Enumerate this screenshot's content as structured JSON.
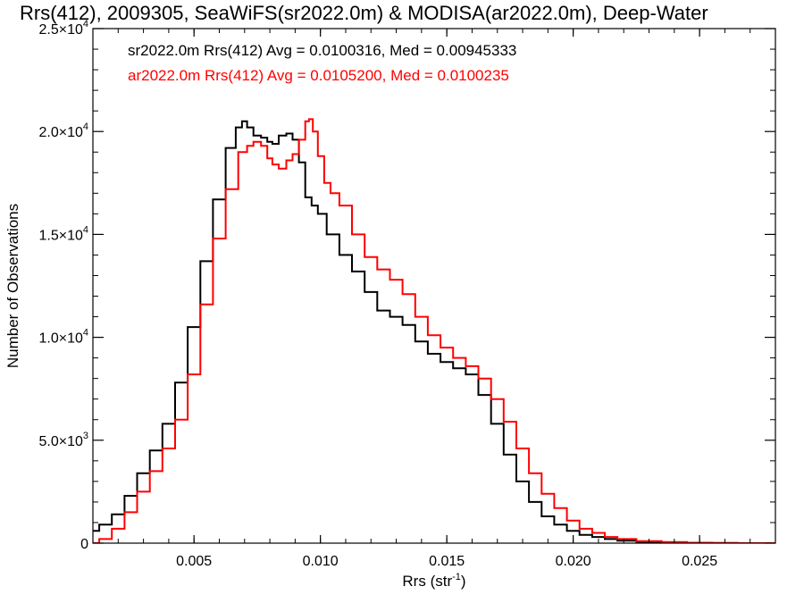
{
  "chart_data": {
    "type": "line",
    "title": "Rrs(412), 2009305, SeaWiFS(sr2022.0m) & MODISA(ar2022.0m), Deep-Water",
    "xlabel": "Rrs (str",
    "xlabel_sup": "-1",
    "xlabel_end": ")",
    "ylabel": "Number of Observations",
    "xlim": [
      0.001,
      0.028
    ],
    "ylim": [
      0,
      25000
    ],
    "grid": false,
    "x_ticks": [
      {
        "value": 0.005,
        "label": "0.005"
      },
      {
        "value": 0.01,
        "label": "0.010"
      },
      {
        "value": 0.015,
        "label": "0.015"
      },
      {
        "value": 0.02,
        "label": "0.020"
      },
      {
        "value": 0.025,
        "label": "0.025"
      }
    ],
    "y_ticks": [
      {
        "value": 0,
        "mant": "0",
        "exp": ""
      },
      {
        "value": 5000,
        "mant": "5.0×10",
        "exp": "3"
      },
      {
        "value": 10000,
        "mant": "1.0×10",
        "exp": "4"
      },
      {
        "value": 15000,
        "mant": "1.5×10",
        "exp": "4"
      },
      {
        "value": 20000,
        "mant": "2.0×10",
        "exp": "4"
      },
      {
        "value": 25000,
        "mant": "2.5×10",
        "exp": "4"
      }
    ],
    "series": [
      {
        "name": "sr2022.0m Rrs(412) Avg = 0.0100316, Med = 0.00945333",
        "color": "#000000",
        "x": [
          0.001,
          0.0015,
          0.002,
          0.0025,
          0.003,
          0.0035,
          0.004,
          0.0045,
          0.005,
          0.0055,
          0.006,
          0.0065,
          0.0068,
          0.007,
          0.0072,
          0.0075,
          0.0078,
          0.008,
          0.0082,
          0.0085,
          0.0088,
          0.009,
          0.0093,
          0.0095,
          0.0098,
          0.01,
          0.0105,
          0.011,
          0.0115,
          0.012,
          0.0125,
          0.013,
          0.0135,
          0.014,
          0.0145,
          0.015,
          0.0155,
          0.016,
          0.0165,
          0.017,
          0.0175,
          0.018,
          0.0185,
          0.019,
          0.0195,
          0.02,
          0.0205,
          0.021,
          0.0215,
          0.022,
          0.023,
          0.024,
          0.025,
          0.026,
          0.027,
          0.028
        ],
        "y": [
          600,
          900,
          1400,
          2300,
          3400,
          4500,
          5800,
          7800,
          10500,
          13700,
          16700,
          19200,
          20200,
          20500,
          20200,
          19800,
          19700,
          19500,
          19400,
          19800,
          19900,
          19600,
          18500,
          16800,
          16400,
          16000,
          15000,
          14000,
          13200,
          12200,
          11300,
          11000,
          10600,
          9800,
          9200,
          8800,
          8500,
          8200,
          7200,
          5800,
          4300,
          3000,
          2000,
          1300,
          900,
          600,
          400,
          300,
          200,
          120,
          50,
          20,
          10,
          5,
          0,
          0
        ]
      },
      {
        "name": "ar2022.0m Rrs(412) Avg = 0.0105200, Med = 0.0100235",
        "color": "#ff0000",
        "x": [
          0.001,
          0.0015,
          0.002,
          0.0025,
          0.003,
          0.0035,
          0.004,
          0.0045,
          0.005,
          0.0055,
          0.006,
          0.0065,
          0.007,
          0.0072,
          0.0075,
          0.0078,
          0.008,
          0.0082,
          0.0085,
          0.0088,
          0.009,
          0.0093,
          0.0095,
          0.0096,
          0.0098,
          0.01,
          0.0103,
          0.0105,
          0.011,
          0.0115,
          0.012,
          0.0125,
          0.013,
          0.0135,
          0.014,
          0.0145,
          0.015,
          0.0155,
          0.016,
          0.0165,
          0.017,
          0.0175,
          0.018,
          0.0185,
          0.019,
          0.0195,
          0.02,
          0.0205,
          0.021,
          0.0215,
          0.022,
          0.023,
          0.024,
          0.025,
          0.026,
          0.027,
          0.028
        ],
        "y": [
          0,
          200,
          700,
          1500,
          2500,
          3500,
          4600,
          6000,
          8200,
          11600,
          14800,
          17200,
          19000,
          19300,
          19500,
          19300,
          18700,
          18400,
          18200,
          18600,
          18900,
          19600,
          20500,
          20600,
          20000,
          18800,
          17500,
          17000,
          16400,
          15000,
          13900,
          13300,
          12800,
          12100,
          11000,
          10100,
          9500,
          9000,
          8600,
          8000,
          7000,
          5900,
          4600,
          3400,
          2400,
          1700,
          1100,
          700,
          500,
          300,
          200,
          100,
          50,
          20,
          10,
          0,
          0
        ]
      }
    ]
  }
}
